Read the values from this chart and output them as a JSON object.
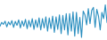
{
  "values": [
    -2.5,
    -1.0,
    -1.8,
    -0.5,
    -2.8,
    -0.8,
    -2.0,
    -0.3,
    -3.0,
    -0.6,
    -2.2,
    0.0,
    -3.2,
    -0.4,
    -2.5,
    0.2,
    -3.5,
    -0.2,
    -2.8,
    0.5,
    -3.8,
    0.0,
    -3.0,
    0.8,
    -4.0,
    0.5,
    -3.2,
    1.2,
    -4.5,
    0.8,
    -3.5,
    1.5,
    -5.0,
    1.2,
    -3.8,
    2.0,
    -5.5,
    1.8,
    -4.0,
    2.5,
    -6.0,
    2.5,
    -4.5,
    3.2,
    -6.5,
    3.0,
    -5.5,
    1.0,
    -7.0,
    3.5,
    2.0,
    -2.0,
    4.5,
    -1.5,
    3.8,
    5.0,
    -3.0,
    4.2,
    1.5,
    -4.0,
    3.0,
    0.5,
    6.0,
    -1.0
  ],
  "line_color": "#2b8fc0",
  "bg_color": "#ffffff",
  "linewidth": 0.8
}
